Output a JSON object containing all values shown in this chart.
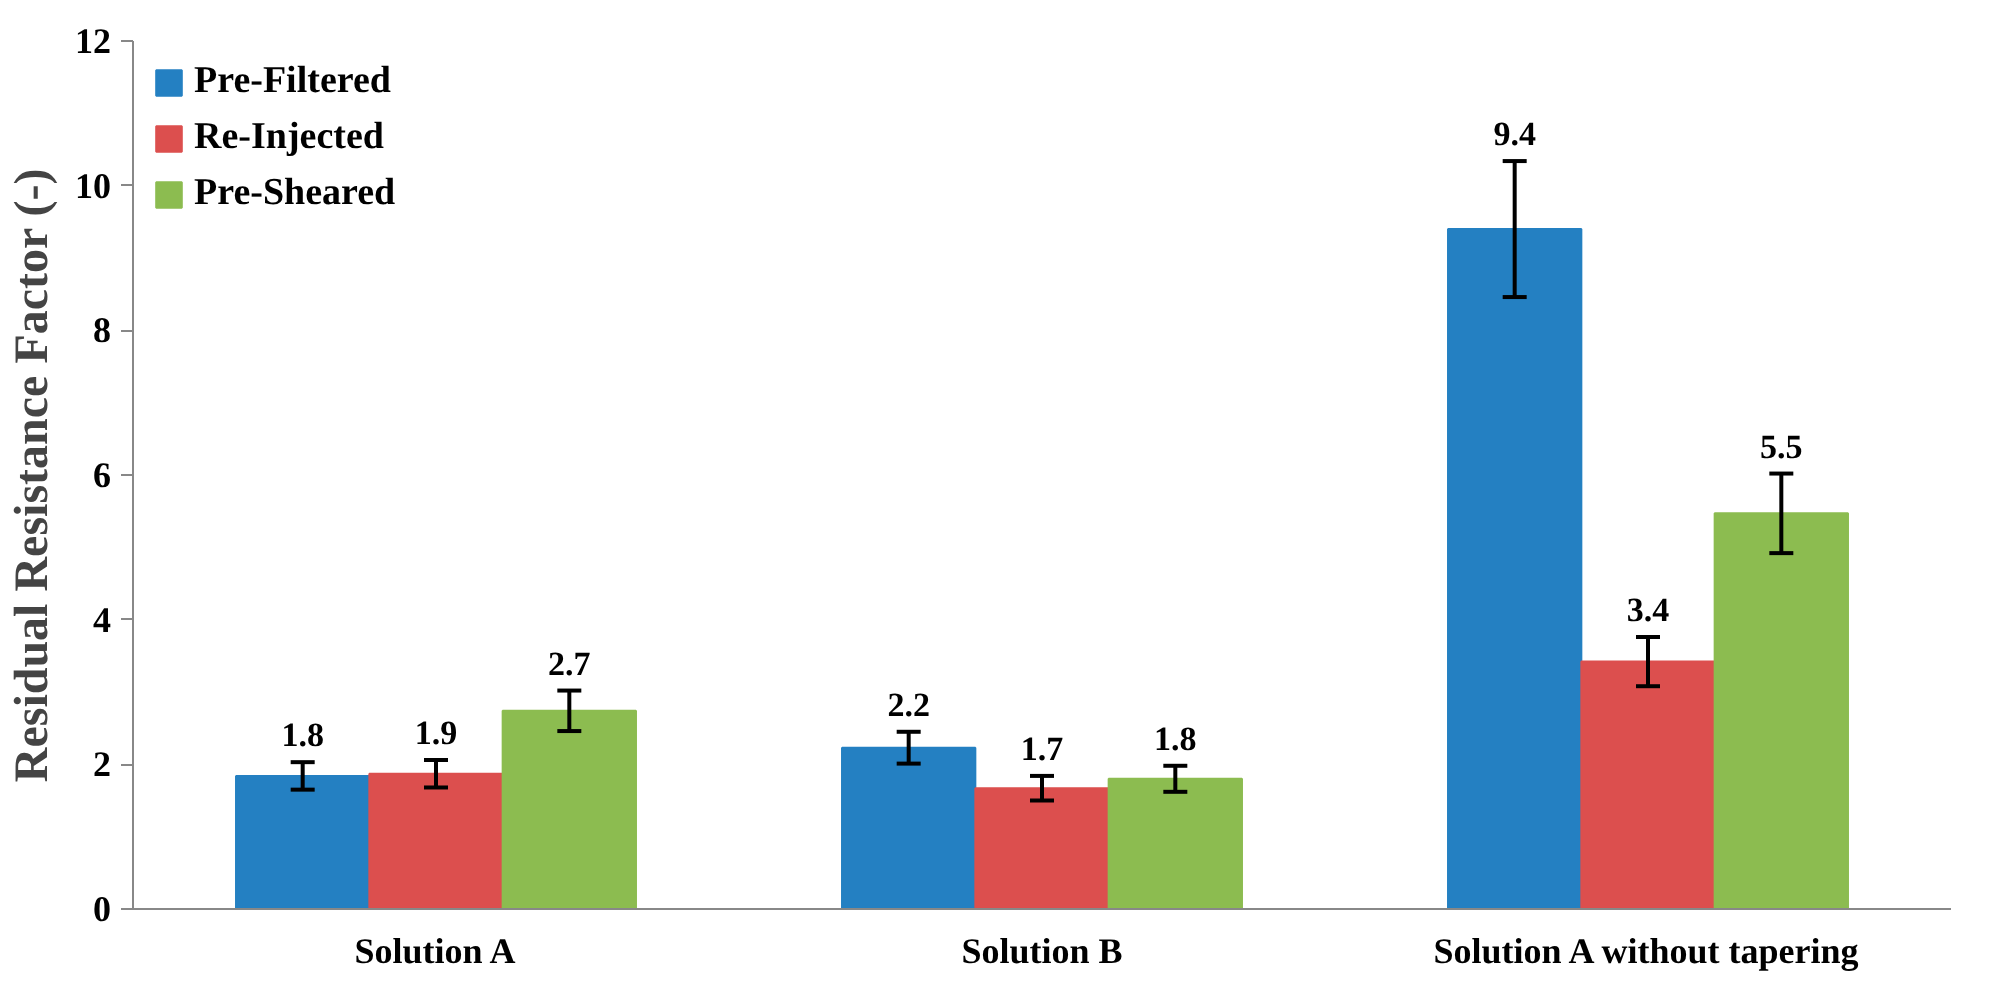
{
  "chart_data": {
    "type": "bar",
    "ylabel": "Residual Resistance Factor (-)",
    "categories": [
      "Solution A",
      "Solution B",
      "Solution A without tapering"
    ],
    "series": [
      {
        "name": "Pre-Filtered",
        "color": "#2480c2",
        "values": [
          1.84,
          2.23,
          9.4
        ],
        "errors": [
          0.19,
          0.22,
          0.94
        ],
        "value_labels": [
          "1.8",
          "2.2",
          "9.4"
        ]
      },
      {
        "name": "Re-Injected",
        "color": "#dc4f4e",
        "values": [
          1.87,
          1.67,
          3.42
        ],
        "errors": [
          0.19,
          0.17,
          0.34
        ],
        "value_labels": [
          "1.9",
          "1.7",
          "3.4"
        ]
      },
      {
        "name": "Pre-Sheared",
        "color": "#8cbc50",
        "values": [
          2.74,
          1.8,
          5.47
        ],
        "errors": [
          0.28,
          0.18,
          0.55
        ],
        "value_labels": [
          "2.7",
          "1.8",
          "5.5"
        ]
      }
    ],
    "ylim": [
      0,
      12
    ],
    "yticks": [
      0,
      2,
      4,
      6,
      8,
      10,
      12
    ],
    "grid": false,
    "legend": "top left"
  }
}
